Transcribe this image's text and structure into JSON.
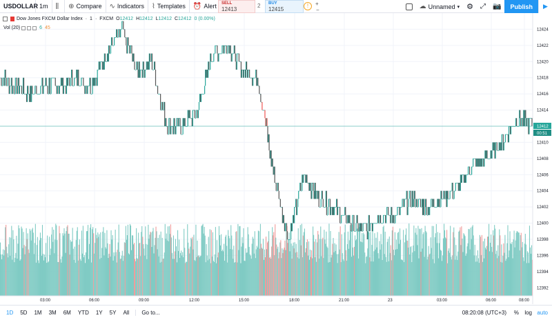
{
  "toolbar": {
    "symbol": "USDOLLAR",
    "interval": "1m",
    "compare_label": "Compare",
    "indicators_label": "Indicators",
    "templates_label": "Templates",
    "alert_label": "Alert",
    "sell_label": "SELL",
    "sell_price": "12413",
    "spread": "2",
    "buy_label": "BUY",
    "buy_price": "12415",
    "layout_name": "Unnamed",
    "publish_label": "Publish"
  },
  "legend": {
    "title": "Dow Jones FXCM Dollar Index",
    "interval": "1",
    "source": "FXCM",
    "open": "12412",
    "high": "12412",
    "low": "12412",
    "close": "12412",
    "change": "0 (0.00%)",
    "vol_label": "Vol (20)",
    "vol_value1": "6",
    "vol_value2": "45"
  },
  "price_axis": {
    "ticks": [
      "12424",
      "12422",
      "12420",
      "12418",
      "12416",
      "12414",
      "12412",
      "12410",
      "12408",
      "12406",
      "12404",
      "12402",
      "12400",
      "12398",
      "12396",
      "12394",
      "12392"
    ],
    "current_price": "12412",
    "countdown": "00:51"
  },
  "time_axis": {
    "ticks": [
      "03:00",
      "06:00",
      "09:00",
      "12:00",
      "15:00",
      "18:00",
      "21:00",
      "23",
      "03:00",
      "06:00",
      "08:00"
    ]
  },
  "bottombar": {
    "ranges": [
      "1D",
      "5D",
      "1M",
      "3M",
      "6M",
      "YTD",
      "1Y",
      "5Y",
      "All"
    ],
    "active_range": "1D",
    "goto_label": "Go to...",
    "time": "08:20:08 (UTC+3)",
    "percent": "%",
    "log": "log",
    "auto": "auto"
  },
  "colors": {
    "up": "#26a69a",
    "down": "#ef5350",
    "vol_up": "#80cbc4",
    "vol_down": "#ef9a9a",
    "current_line": "#26a69a",
    "accent": "#2196f3"
  },
  "chart_data": {
    "type": "line",
    "title": "",
    "xlabel": "",
    "ylabel": "",
    "ylim": [
      12391,
      12426
    ],
    "x": [
      "00:00",
      "01:00",
      "02:00",
      "03:00",
      "04:00",
      "05:00",
      "06:00",
      "07:00",
      "08:00",
      "09:00",
      "10:00",
      "11:00",
      "12:00",
      "13:00",
      "14:00",
      "15:00",
      "15:30",
      "16:00",
      "16:30",
      "17:00",
      "17:30",
      "18:00",
      "19:00",
      "20:00",
      "21:00",
      "22:00",
      "23",
      "01:00",
      "02:00",
      "03:00",
      "04:00",
      "05:00",
      "06:00",
      "07:00",
      "08:00",
      "08:20"
    ],
    "series": [
      {
        "values": [
          12418,
          12417,
          12416,
          12417,
          12417,
          12418,
          12417,
          12421,
          12424,
          12419,
          12420,
          12412,
          12412,
          12414,
          12421,
          12422,
          12419,
          12418,
          12406,
          12398,
          12406,
          12403,
          12402,
          12400,
          12399,
          12401,
          12401,
          12403,
          12402,
          12403,
          12404,
          12407,
          12408,
          12410,
          12413,
          12412
        ]
      }
    ]
  }
}
